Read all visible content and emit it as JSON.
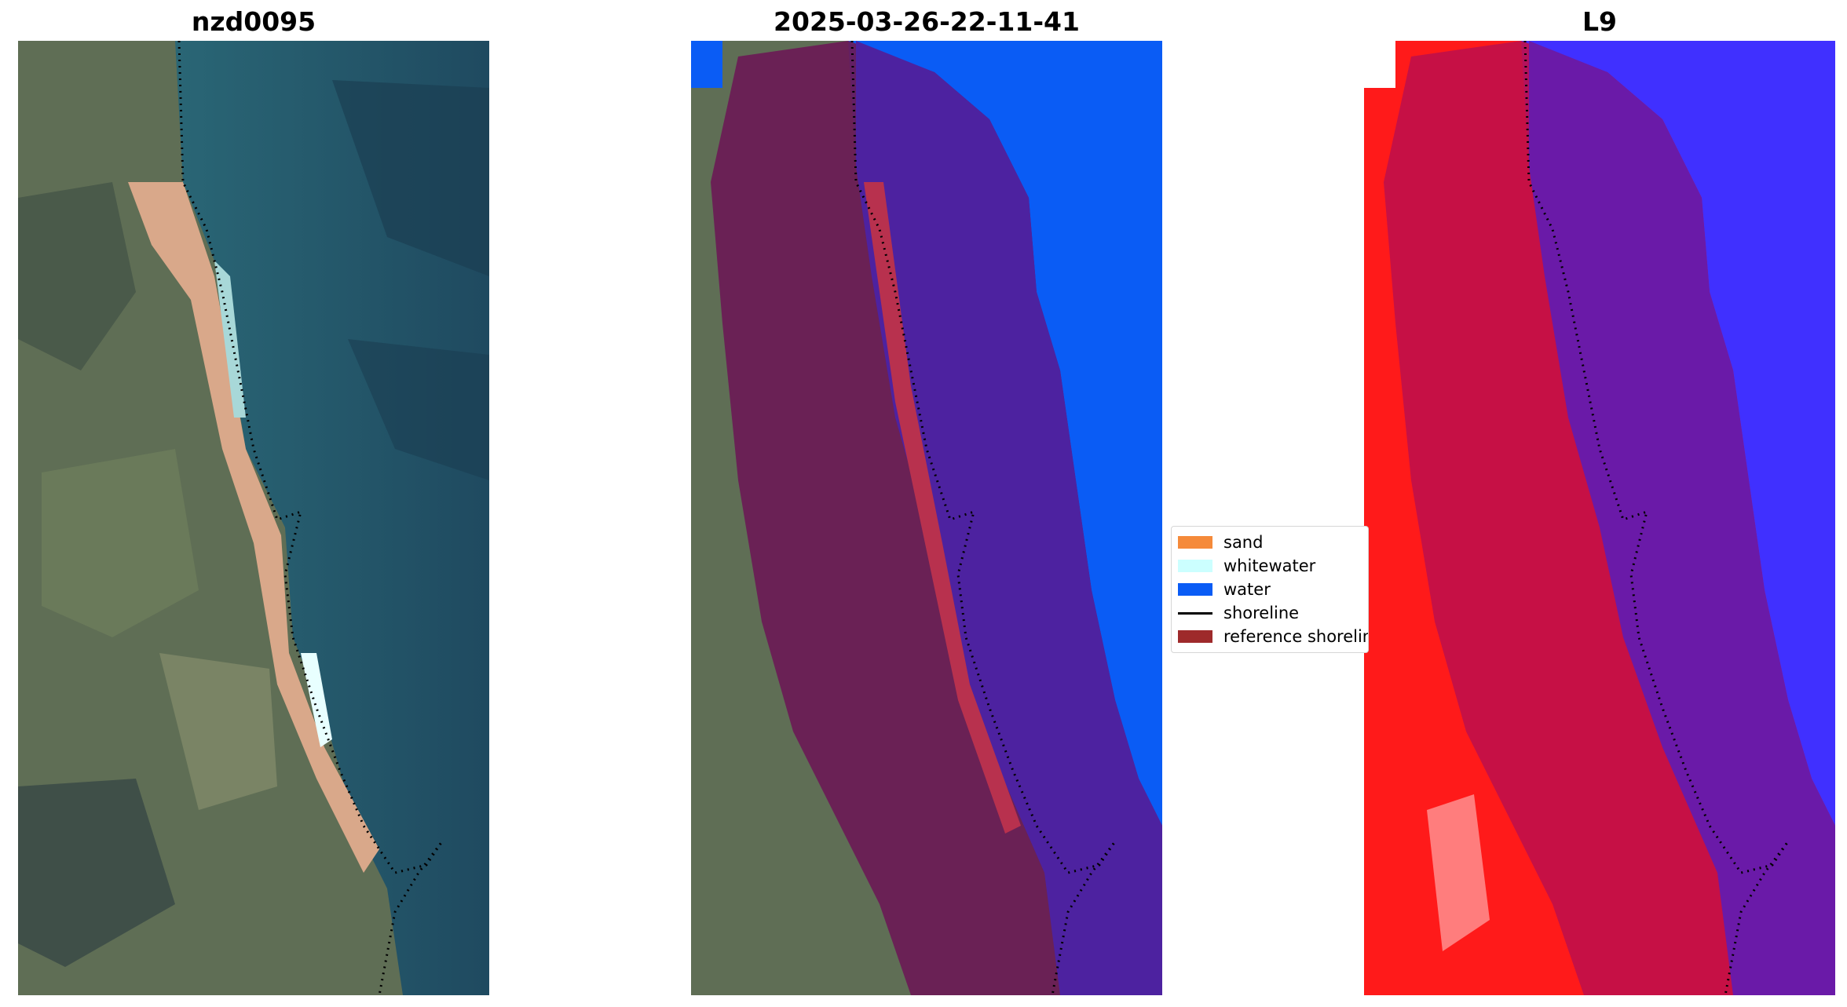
{
  "panels": {
    "left": {
      "title": "nzd0095"
    },
    "center": {
      "title": "2025-03-26-22-11-41"
    },
    "right": {
      "title": "L9"
    }
  },
  "legend": {
    "items": [
      {
        "label": "sand",
        "color": "#f58a3a"
      },
      {
        "label": "whitewater",
        "color": "#ccffff"
      },
      {
        "label": "water",
        "color": "#0a5cf5"
      },
      {
        "label": "shoreline",
        "color": "#000000"
      },
      {
        "label": "reference shoreline",
        "color": "#9e2a2b"
      }
    ]
  },
  "colors": {
    "land": "#6b7a5a",
    "ocean": "#2a5d6b",
    "beach": "#d9a88a",
    "reference_buffer": "#8a1a4a",
    "water_class": "#0a5cf5",
    "water_index_high": "#4030ff",
    "water_index_low": "#ff1a1a"
  }
}
